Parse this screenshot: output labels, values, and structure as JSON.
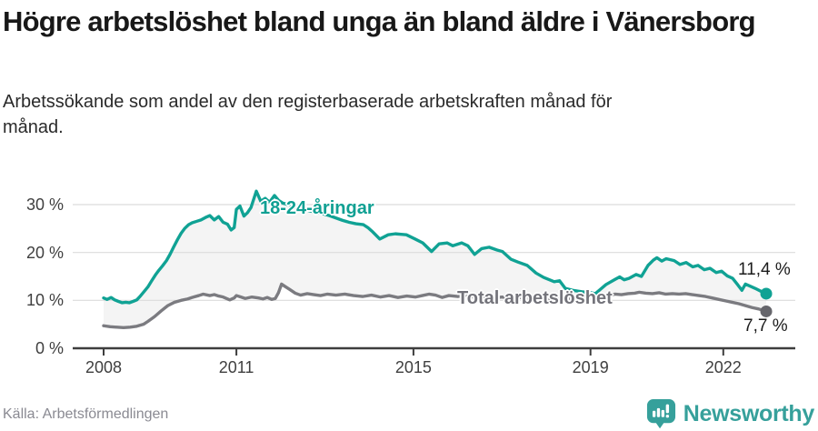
{
  "header": {
    "title": "Högre arbetslöshet bland unga än bland äldre i Vänersborg",
    "subtitle": "Arbetssökande som andel av den registerbaserade arbetskraften månad för månad."
  },
  "footer": {
    "source": "Källa: Arbetsförmedlingen",
    "brand": "Newsworthy"
  },
  "colors": {
    "young_line": "#10a294",
    "young_label": "#10a093",
    "total_line": "#7b7b80",
    "total_dot": "#66666c",
    "band_fill": "#f4f4f4",
    "gridline": "#dcdcdc",
    "axis": "#3d3d3d",
    "brand_teal": "#36a09b"
  },
  "chart_data": {
    "type": "line",
    "title": "Högre arbetslöshet bland unga än bland äldre i Vänersborg",
    "subtitle": "Arbetssökande som andel av den registerbaserade arbetskraften månad för månad.",
    "xlabel": "",
    "ylabel": "",
    "xlim": [
      2007.3,
      2023.6
    ],
    "ylim": [
      0,
      33
    ],
    "grid": "horizontal",
    "legend": "inline-labels",
    "band_fill": "#f4f4f4",
    "yticks": [
      [
        30,
        "30 %"
      ],
      [
        20,
        "20 %"
      ],
      [
        10,
        "10 %"
      ],
      [
        0,
        "0 %"
      ]
    ],
    "xticks": [
      [
        2008,
        "2008"
      ],
      [
        2011,
        "2011"
      ],
      [
        2015,
        "2015"
      ],
      [
        2019,
        "2019"
      ],
      [
        2022,
        "2022"
      ]
    ],
    "series": [
      {
        "name": "18-24-åringar",
        "color": "#10a294",
        "dot_color": "#10a294",
        "end_label": "11,4 %",
        "points": [
          [
            2008.0,
            10.5
          ],
          [
            2008.08,
            10.2
          ],
          [
            2008.17,
            10.6
          ],
          [
            2008.25,
            10.1
          ],
          [
            2008.33,
            9.8
          ],
          [
            2008.42,
            9.5
          ],
          [
            2008.5,
            9.6
          ],
          [
            2008.58,
            9.5
          ],
          [
            2008.67,
            9.8
          ],
          [
            2008.75,
            10.1
          ],
          [
            2008.83,
            10.9
          ],
          [
            2008.92,
            11.9
          ],
          [
            2009.0,
            12.8
          ],
          [
            2009.08,
            14.0
          ],
          [
            2009.17,
            15.3
          ],
          [
            2009.25,
            16.3
          ],
          [
            2009.33,
            17.2
          ],
          [
            2009.42,
            18.3
          ],
          [
            2009.5,
            19.6
          ],
          [
            2009.58,
            21.1
          ],
          [
            2009.67,
            22.7
          ],
          [
            2009.75,
            24.0
          ],
          [
            2009.83,
            25.0
          ],
          [
            2009.92,
            25.8
          ],
          [
            2010.0,
            26.2
          ],
          [
            2010.1,
            26.5
          ],
          [
            2010.2,
            26.8
          ],
          [
            2010.3,
            27.3
          ],
          [
            2010.4,
            27.7
          ],
          [
            2010.5,
            26.8
          ],
          [
            2010.6,
            27.5
          ],
          [
            2010.7,
            26.3
          ],
          [
            2010.8,
            25.9
          ],
          [
            2010.88,
            24.7
          ],
          [
            2010.95,
            25.2
          ],
          [
            2011.0,
            29.0
          ],
          [
            2011.08,
            29.7
          ],
          [
            2011.17,
            27.6
          ],
          [
            2011.25,
            28.3
          ],
          [
            2011.33,
            29.4
          ],
          [
            2011.45,
            32.8
          ],
          [
            2011.55,
            30.7
          ],
          [
            2011.65,
            31.3
          ],
          [
            2011.75,
            30.5
          ],
          [
            2011.86,
            31.9
          ],
          [
            2011.95,
            30.9
          ],
          [
            2012.05,
            30.3
          ],
          [
            2012.2,
            29.9
          ],
          [
            2012.35,
            29.4
          ],
          [
            2012.5,
            29.1
          ],
          [
            2012.65,
            28.7
          ],
          [
            2012.8,
            28.4
          ],
          [
            2012.95,
            28.1
          ],
          [
            2013.1,
            27.7
          ],
          [
            2013.25,
            27.2
          ],
          [
            2013.4,
            26.7
          ],
          [
            2013.55,
            26.3
          ],
          [
            2013.7,
            26.0
          ],
          [
            2013.87,
            25.8
          ],
          [
            2013.97,
            25.2
          ],
          [
            2014.08,
            24.3
          ],
          [
            2014.24,
            22.8
          ],
          [
            2014.43,
            23.7
          ],
          [
            2014.59,
            23.9
          ],
          [
            2014.72,
            23.8
          ],
          [
            2014.84,
            23.7
          ],
          [
            2015.04,
            22.8
          ],
          [
            2015.21,
            22.0
          ],
          [
            2015.41,
            20.2
          ],
          [
            2015.58,
            21.8
          ],
          [
            2015.76,
            22.0
          ],
          [
            2015.89,
            21.4
          ],
          [
            2016.09,
            22.0
          ],
          [
            2016.23,
            21.4
          ],
          [
            2016.38,
            19.6
          ],
          [
            2016.54,
            20.8
          ],
          [
            2016.71,
            21.1
          ],
          [
            2016.89,
            20.5
          ],
          [
            2017.01,
            20.2
          ],
          [
            2017.2,
            18.6
          ],
          [
            2017.36,
            18.0
          ],
          [
            2017.57,
            17.3
          ],
          [
            2017.77,
            15.7
          ],
          [
            2017.94,
            14.8
          ],
          [
            2018.18,
            13.9
          ],
          [
            2018.3,
            14.1
          ],
          [
            2018.43,
            12.5
          ],
          [
            2018.6,
            12.1
          ],
          [
            2018.8,
            11.8
          ],
          [
            2019.0,
            11.6
          ],
          [
            2019.11,
            11.4
          ],
          [
            2019.21,
            12.2
          ],
          [
            2019.35,
            13.3
          ],
          [
            2019.56,
            14.4
          ],
          [
            2019.66,
            14.9
          ],
          [
            2019.76,
            14.3
          ],
          [
            2019.87,
            14.6
          ],
          [
            2020.03,
            15.4
          ],
          [
            2020.15,
            15.0
          ],
          [
            2020.3,
            17.3
          ],
          [
            2020.42,
            18.4
          ],
          [
            2020.5,
            18.9
          ],
          [
            2020.61,
            18.2
          ],
          [
            2020.71,
            18.7
          ],
          [
            2020.89,
            18.3
          ],
          [
            2021.02,
            17.5
          ],
          [
            2021.16,
            17.9
          ],
          [
            2021.31,
            17.0
          ],
          [
            2021.43,
            17.3
          ],
          [
            2021.57,
            16.4
          ],
          [
            2021.7,
            16.7
          ],
          [
            2021.84,
            15.8
          ],
          [
            2021.96,
            16.1
          ],
          [
            2022.09,
            15.1
          ],
          [
            2022.21,
            14.6
          ],
          [
            2022.33,
            13.2
          ],
          [
            2022.42,
            12.1
          ],
          [
            2022.5,
            13.4
          ],
          [
            2022.6,
            13.0
          ],
          [
            2022.72,
            12.5
          ],
          [
            2022.85,
            11.9
          ],
          [
            2022.97,
            11.4
          ]
        ]
      },
      {
        "name": "Total arbetslöshet",
        "color": "#7b7b80",
        "dot_color": "#66666c",
        "end_label": "7,7 %",
        "points": [
          [
            2008.0,
            4.7
          ],
          [
            2008.15,
            4.5
          ],
          [
            2008.3,
            4.4
          ],
          [
            2008.45,
            4.3
          ],
          [
            2008.6,
            4.4
          ],
          [
            2008.75,
            4.6
          ],
          [
            2008.9,
            5.0
          ],
          [
            2009.0,
            5.6
          ],
          [
            2009.15,
            6.6
          ],
          [
            2009.3,
            7.8
          ],
          [
            2009.45,
            8.9
          ],
          [
            2009.6,
            9.6
          ],
          [
            2009.75,
            10.0
          ],
          [
            2009.9,
            10.3
          ],
          [
            2010.0,
            10.6
          ],
          [
            2010.15,
            11.0
          ],
          [
            2010.25,
            11.3
          ],
          [
            2010.4,
            11.0
          ],
          [
            2010.5,
            11.2
          ],
          [
            2010.6,
            10.9
          ],
          [
            2010.7,
            10.7
          ],
          [
            2010.85,
            10.1
          ],
          [
            2010.95,
            10.5
          ],
          [
            2011.0,
            11.0
          ],
          [
            2011.1,
            10.7
          ],
          [
            2011.2,
            10.4
          ],
          [
            2011.35,
            10.7
          ],
          [
            2011.5,
            10.5
          ],
          [
            2011.6,
            10.3
          ],
          [
            2011.7,
            10.6
          ],
          [
            2011.8,
            10.2
          ],
          [
            2011.88,
            10.4
          ],
          [
            2011.95,
            11.6
          ],
          [
            2012.02,
            13.4
          ],
          [
            2012.1,
            12.9
          ],
          [
            2012.2,
            12.3
          ],
          [
            2012.33,
            11.5
          ],
          [
            2012.45,
            11.1
          ],
          [
            2012.6,
            11.4
          ],
          [
            2012.75,
            11.2
          ],
          [
            2012.9,
            11.0
          ],
          [
            2013.05,
            11.3
          ],
          [
            2013.25,
            11.1
          ],
          [
            2013.45,
            11.3
          ],
          [
            2013.65,
            11.0
          ],
          [
            2013.85,
            10.8
          ],
          [
            2014.05,
            11.1
          ],
          [
            2014.25,
            10.7
          ],
          [
            2014.45,
            11.0
          ],
          [
            2014.65,
            10.6
          ],
          [
            2014.85,
            10.9
          ],
          [
            2015.05,
            10.7
          ],
          [
            2015.2,
            11.0
          ],
          [
            2015.35,
            11.3
          ],
          [
            2015.5,
            11.1
          ],
          [
            2015.65,
            10.6
          ],
          [
            2015.8,
            11.0
          ],
          [
            2016.0,
            10.8
          ],
          [
            2016.2,
            11.0
          ],
          [
            2016.4,
            10.6
          ],
          [
            2016.6,
            10.8
          ],
          [
            2016.8,
            10.5
          ],
          [
            2017.0,
            10.7
          ],
          [
            2017.2,
            10.4
          ],
          [
            2017.4,
            10.6
          ],
          [
            2017.6,
            10.3
          ],
          [
            2017.8,
            10.5
          ],
          [
            2018.0,
            10.3
          ],
          [
            2018.2,
            10.4
          ],
          [
            2018.4,
            10.2
          ],
          [
            2018.6,
            10.3
          ],
          [
            2018.8,
            10.2
          ],
          [
            2019.0,
            10.4
          ],
          [
            2019.2,
            10.6
          ],
          [
            2019.4,
            11.0
          ],
          [
            2019.55,
            11.3
          ],
          [
            2019.7,
            11.2
          ],
          [
            2019.85,
            11.4
          ],
          [
            2020.0,
            11.5
          ],
          [
            2020.1,
            11.7
          ],
          [
            2020.25,
            11.5
          ],
          [
            2020.4,
            11.4
          ],
          [
            2020.55,
            11.6
          ],
          [
            2020.7,
            11.3
          ],
          [
            2020.85,
            11.4
          ],
          [
            2021.0,
            11.3
          ],
          [
            2021.15,
            11.4
          ],
          [
            2021.3,
            11.2
          ],
          [
            2021.45,
            11.0
          ],
          [
            2021.6,
            10.8
          ],
          [
            2021.75,
            10.5
          ],
          [
            2021.9,
            10.2
          ],
          [
            2022.05,
            9.9
          ],
          [
            2022.2,
            9.6
          ],
          [
            2022.35,
            9.3
          ],
          [
            2022.5,
            8.9
          ],
          [
            2022.65,
            8.5
          ],
          [
            2022.8,
            8.2
          ],
          [
            2022.9,
            7.9
          ],
          [
            2022.97,
            7.7
          ]
        ]
      }
    ]
  }
}
